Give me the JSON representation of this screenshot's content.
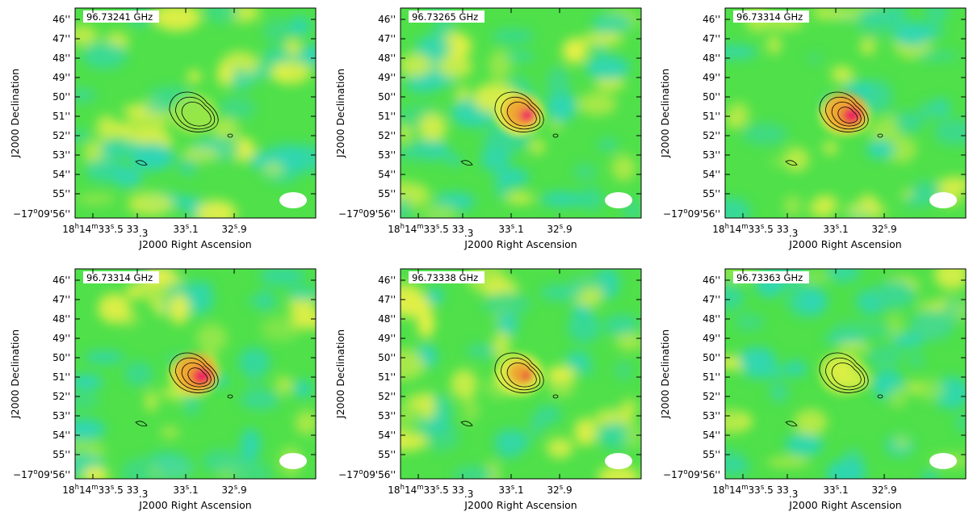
{
  "panels": [
    {
      "frequency": "96.73241 GHz",
      "peak": 0.1,
      "contours": 3
    },
    {
      "frequency": "96.73265 GHz",
      "peak": 0.8,
      "contours": 3
    },
    {
      "frequency": "96.73314 GHz",
      "peak": 1.0,
      "contours": 4
    },
    {
      "frequency": "96.73314 GHz",
      "peak": 1.0,
      "contours": 4
    },
    {
      "frequency": "96.73338 GHz",
      "peak": 0.55,
      "contours": 3
    },
    {
      "frequency": "96.73363 GHz",
      "peak": 0.2,
      "contours": 3
    }
  ],
  "y_axis": {
    "label": "J2000 Declination",
    "ticks": [
      "46''",
      "47''",
      "48''",
      "49''",
      "50''",
      "51''",
      "52''",
      "53''",
      "54''",
      "55''"
    ],
    "origin_tick": {
      "main": "−17",
      "deg": "o",
      "rest": "09'56''"
    }
  },
  "x_axis": {
    "label": "J2000 Right Ascension",
    "first_tick": {
      "h": "18",
      "hsup": "h",
      "m": "14",
      "msup": "m",
      "s": "33",
      "ssup": "s",
      "frac": ".5"
    },
    "ticks": [
      {
        "s": "33",
        "ssup": "",
        "frac": ".3"
      },
      {
        "s": "33",
        "ssup": "s",
        "frac": ".1"
      },
      {
        "s": "32",
        "ssup": "s",
        "frac": ".9"
      }
    ]
  },
  "colors": {
    "background_green": "#4fe04a",
    "low_cyan": "#2ed6b4",
    "mid_yellow": "#e8f046",
    "orange": "#f0a030",
    "red": "#e8283a",
    "peak_magenta": "#f0106a",
    "contour": "#000000",
    "beam": "#ffffff"
  }
}
